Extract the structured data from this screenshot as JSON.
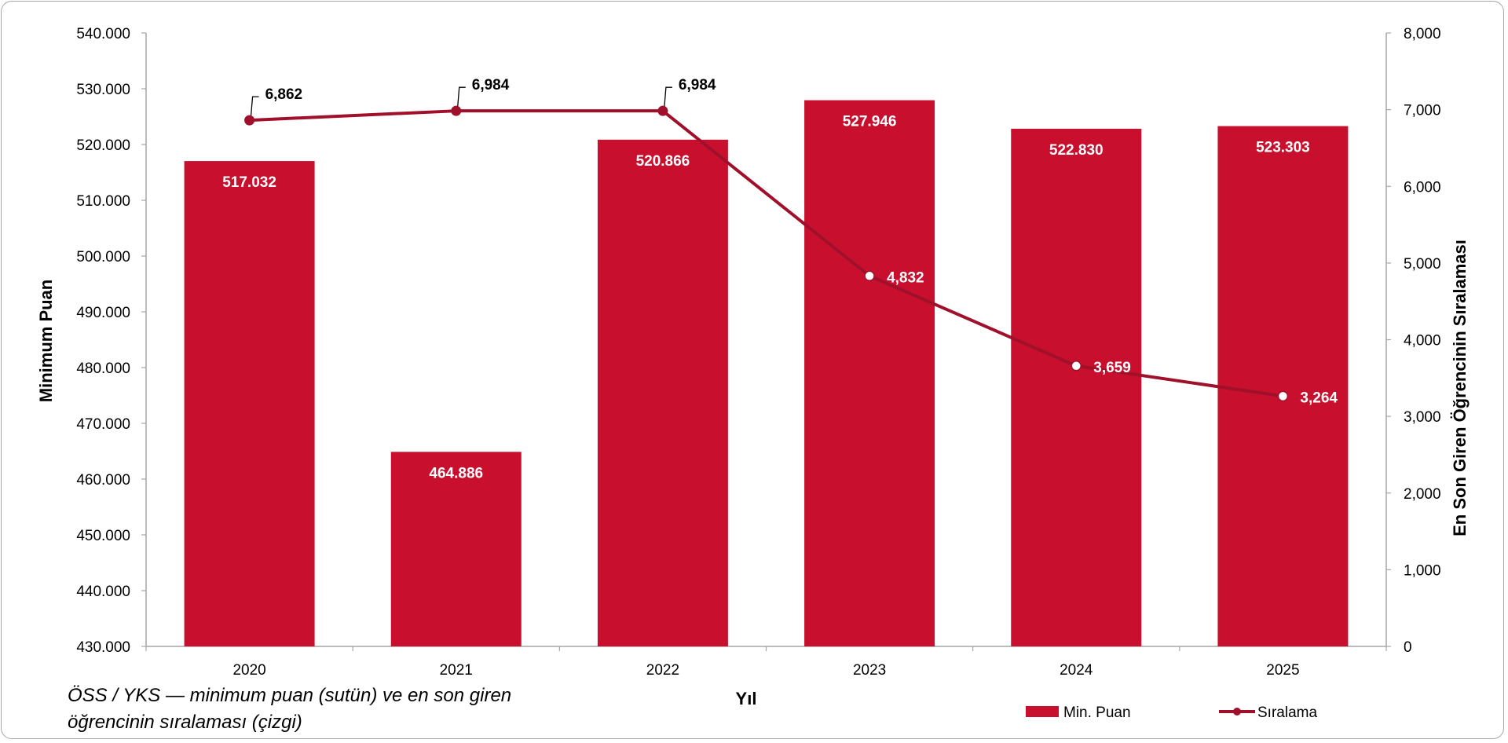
{
  "chart_data": {
    "type": "bar",
    "categories": [
      "2020",
      "2021",
      "2022",
      "2023",
      "2024",
      "2025"
    ],
    "xlabel": "Yıl",
    "ylabel": "Minimum Puan",
    "y2label": "En Son Giren Öğrencinin Sıralaması",
    "ylim": [
      430,
      540
    ],
    "y2lim": [
      0,
      8000
    ],
    "y_ticks": [
      "430.000",
      "440.000",
      "450.000",
      "460.000",
      "470.000",
      "480.000",
      "490.000",
      "500.000",
      "510.000",
      "520.000",
      "530.000",
      "540.000"
    ],
    "y2_ticks": [
      "0",
      "1,000",
      "2,000",
      "3,000",
      "4,000",
      "5,000",
      "6,000",
      "7,000",
      "8,000"
    ],
    "series": [
      {
        "name": "Min. Puan",
        "kind": "bar",
        "axis": "left",
        "color": "#c8102e",
        "values": [
          517.032,
          464.886,
          520.866,
          527.946,
          522.83,
          523.303
        ],
        "labels": [
          "517.032",
          "464.886",
          "520.866",
          "527.946",
          "522.830",
          "523.303"
        ]
      },
      {
        "name": "Sıralama",
        "kind": "line",
        "axis": "right",
        "color": "#a0102a",
        "values": [
          6862,
          6984,
          6984,
          4832,
          3659,
          3264
        ],
        "labels": [
          "6,862",
          "6,984",
          "6,984",
          "4,832",
          "3,659",
          "3,264"
        ]
      }
    ],
    "legend_position": "bottom-right",
    "grid": false,
    "caption": "ÖSS / YKS — minimum puan (sutün) ve en son giren öğrencinin sıralaması (çizgi)"
  },
  "caption_lines": [
    "ÖSS / YKS — minimum puan (sutün) ve en son giren",
    "öğrencinin sıralaması (çizgi)"
  ],
  "colors": {
    "bar": "#c8102e",
    "line": "#a0102a",
    "frame": "#a6a6a6",
    "axis": "#a6a6a6"
  }
}
